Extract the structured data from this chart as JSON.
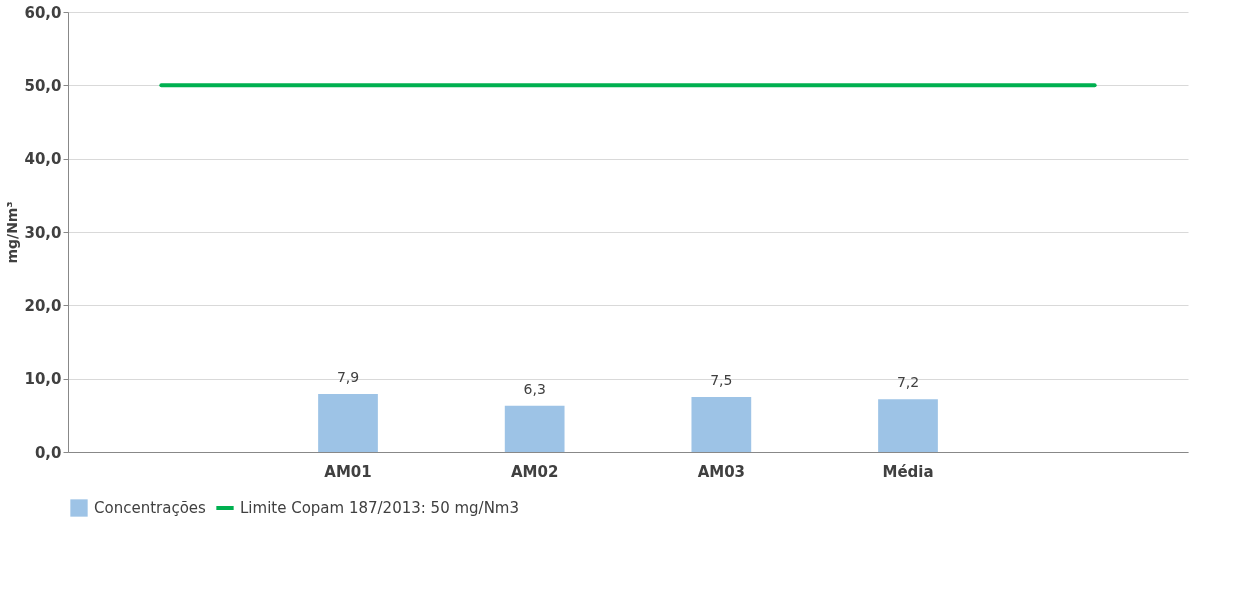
{
  "chart_data": {
    "type": "bar",
    "ylabel": "mg/Nm³",
    "categories": [
      null,
      "AM01",
      "AM02",
      "AM03",
      "Média",
      null
    ],
    "series": [
      {
        "name": "Concentrações",
        "color": "#9dc3e6",
        "values": [
          null,
          7.9,
          6.3,
          7.5,
          7.2,
          null
        ],
        "value_labels": [
          null,
          "7,9",
          "6,3",
          "7,5",
          "7,2",
          null
        ]
      },
      {
        "name": "Limite Copam 187/2013: 50 mg/Nm3",
        "type": "line",
        "color": "#00b050",
        "values": [
          50,
          50,
          50,
          50,
          50,
          50
        ]
      }
    ],
    "ylim": [
      0,
      60
    ],
    "yticks": [
      {
        "value": 0,
        "label": "0,0"
      },
      {
        "value": 10,
        "label": "10,0"
      },
      {
        "value": 20,
        "label": "20,0"
      },
      {
        "value": 30,
        "label": "30,0"
      },
      {
        "value": 40,
        "label": "40,0"
      },
      {
        "value": 50,
        "label": "50,0"
      },
      {
        "value": 60,
        "label": "60,0"
      }
    ],
    "grid": "y",
    "legend": "bottom",
    "marker": "none",
    "line_style": "solid"
  }
}
